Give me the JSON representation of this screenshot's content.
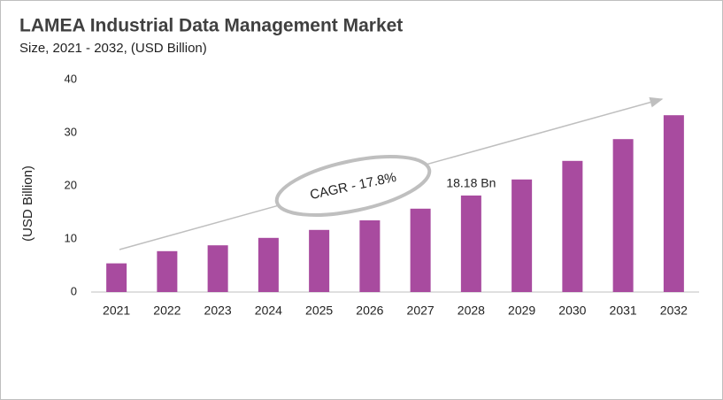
{
  "chart_data": {
    "type": "bar",
    "title": "LAMEA Industrial Data Management Market",
    "subtitle": "Size, 2021 - 2032, (USD Billion)",
    "y_label": "(USD Billion)",
    "annotation": "CAGR - 17.8%",
    "categories": [
      "2021",
      "2022",
      "2023",
      "2024",
      "2025",
      "2026",
      "2027",
      "2028",
      "2029",
      "2030",
      "2031",
      "2032"
    ],
    "values": [
      5.4,
      7.7,
      8.8,
      10.2,
      11.7,
      13.5,
      15.7,
      18.18,
      21.2,
      24.7,
      28.8,
      33.3
    ],
    "value_labels": [
      null,
      null,
      null,
      null,
      null,
      null,
      null,
      "18.18 Bn",
      null,
      null,
      null,
      null
    ],
    "color": "#a84b9f",
    "ylim": [
      0,
      40
    ],
    "yticks": [
      0,
      10,
      20,
      30,
      40
    ],
    "grid": false
  }
}
